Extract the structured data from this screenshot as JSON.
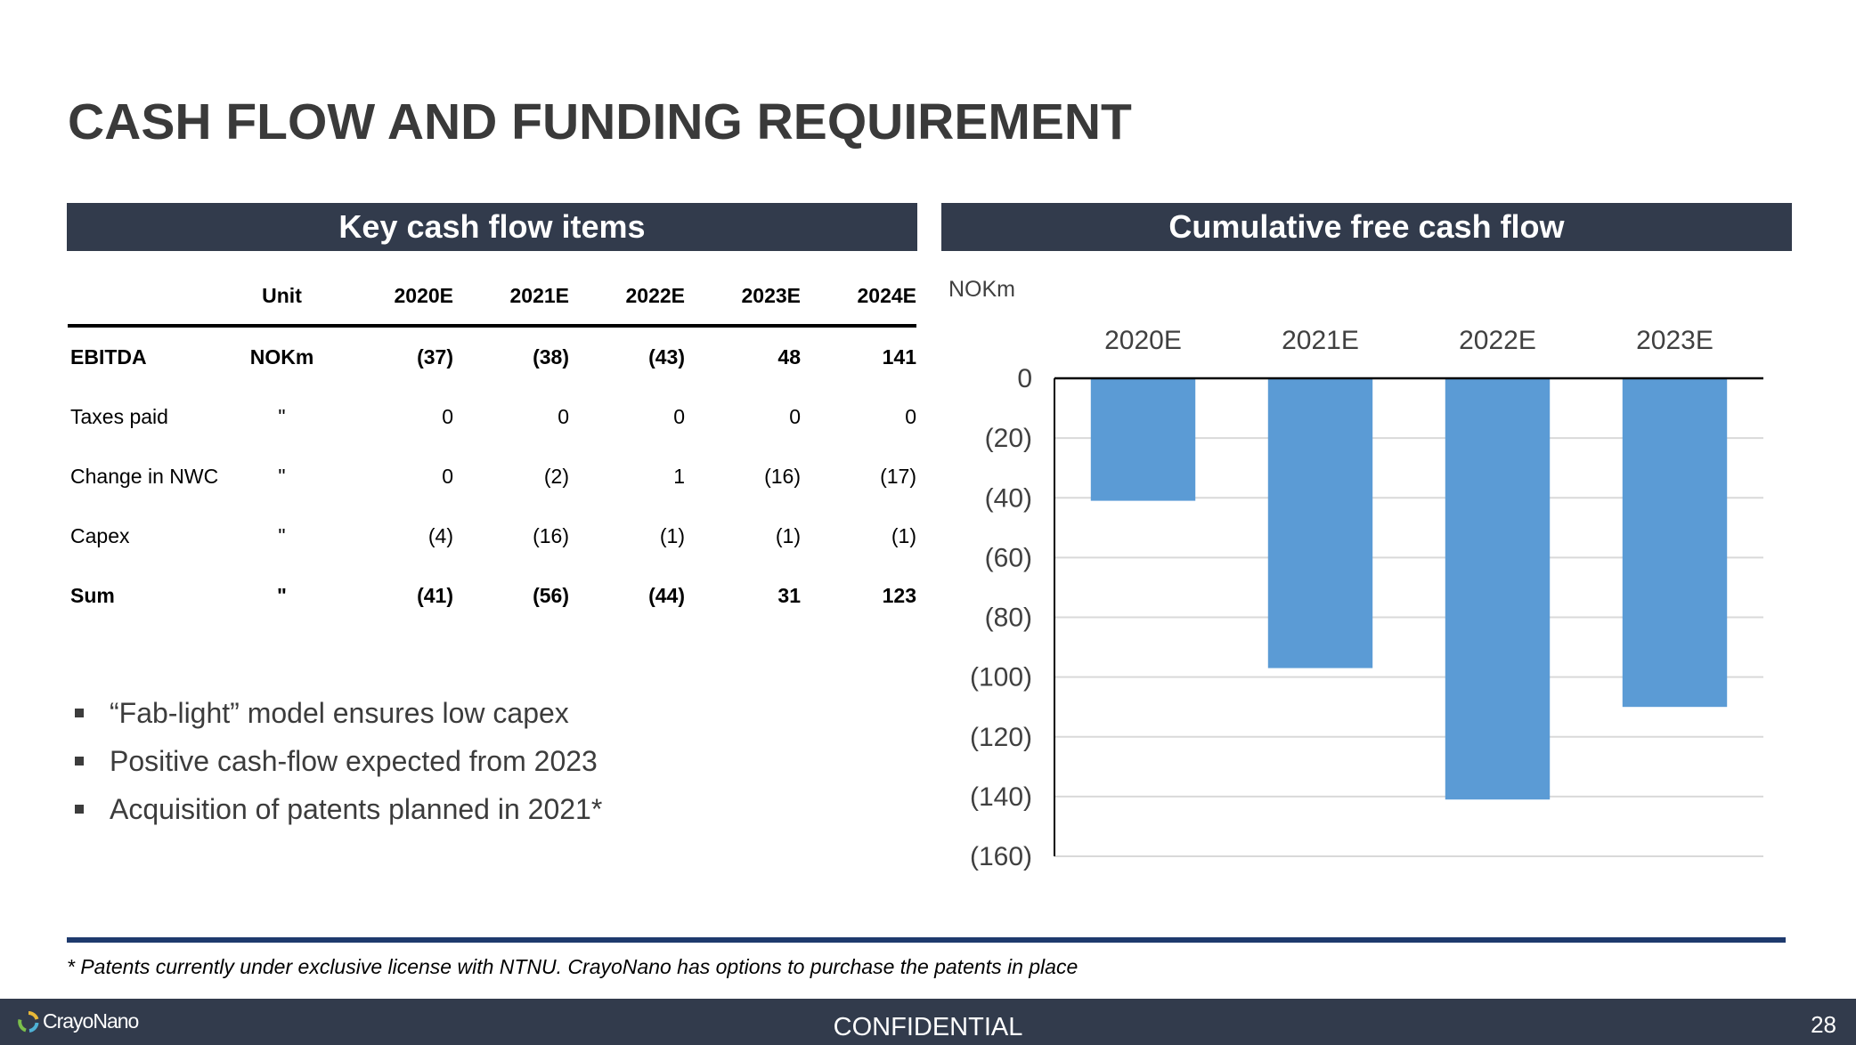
{
  "title": "CASH FLOW AND FUNDING REQUIREMENT",
  "left_panel": {
    "header": "Key cash flow items",
    "columns": [
      "",
      "Unit",
      "2020E",
      "2021E",
      "2022E",
      "2023E",
      "2024E"
    ],
    "rows": [
      {
        "label": "EBITDA",
        "unit": "NOKm",
        "values": [
          "(37)",
          "(38)",
          "(43)",
          "48",
          "141"
        ],
        "bold": true
      },
      {
        "label": "Taxes paid",
        "unit": "\"",
        "values": [
          "0",
          "0",
          "0",
          "0",
          "0"
        ],
        "bold": false
      },
      {
        "label": "Change in NWC",
        "unit": "\"",
        "values": [
          "0",
          "(2)",
          "1",
          "(16)",
          "(17)"
        ],
        "bold": false
      },
      {
        "label": "Capex",
        "unit": "\"",
        "values": [
          "(4)",
          "(16)",
          "(1)",
          "(1)",
          "(1)"
        ],
        "bold": false
      },
      {
        "label": "Sum",
        "unit": "\"",
        "values": [
          "(41)",
          "(56)",
          "(44)",
          "31",
          "123"
        ],
        "bold": true
      }
    ],
    "bullets": [
      "“Fab-light” model ensures low capex",
      "Positive cash-flow expected from 2023",
      "Acquisition of patents planned in 2021*"
    ]
  },
  "right_panel": {
    "header": "Cumulative free cash flow"
  },
  "chart_data": {
    "type": "bar",
    "title": "Cumulative free cash flow",
    "unit_label": "NOKm",
    "categories": [
      "2020E",
      "2021E",
      "2022E",
      "2023E"
    ],
    "values": [
      -41,
      -97,
      -141,
      -110
    ],
    "ylim": [
      -160,
      0
    ],
    "yticks": [
      0,
      -20,
      -40,
      -60,
      -80,
      -100,
      -120,
      -140,
      -160
    ],
    "ytick_labels": [
      "0",
      "(20)",
      "(40)",
      "(60)",
      "(80)",
      "(100)",
      "(120)",
      "(140)",
      "(160)"
    ],
    "xaxis_position": "top",
    "grid": true,
    "bar_color": "#5b9bd5",
    "grid_color": "#d9d9d9"
  },
  "footnote": "* Patents currently under exclusive license with NTNU. CrayoNano has options to purchase the patents in place",
  "footer": {
    "logo_text": "CrayoNano",
    "confidential": "CONFIDENTIAL",
    "page_number": "28"
  },
  "colors": {
    "header_bg": "#323b4c",
    "divider": "#1e3a6d",
    "title": "#3a3a3a"
  }
}
